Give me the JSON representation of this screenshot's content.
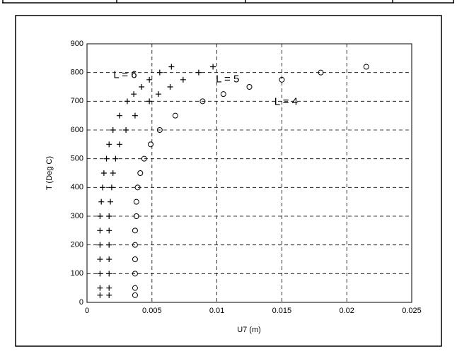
{
  "chart_data": {
    "type": "scatter",
    "xlabel": "U7 (m)",
    "ylabel": "T (Deg C)",
    "xlim": [
      0,
      0.025
    ],
    "xticks": [
      0,
      0.005,
      0.01,
      0.015,
      0.02,
      0.025
    ],
    "ylim": [
      0,
      900
    ],
    "yticks": [
      0,
      100,
      200,
      300,
      400,
      500,
      600,
      700,
      800,
      900
    ],
    "grid": true,
    "series": [
      {
        "name": "L = 6",
        "color": "#000000",
        "marker": "plus",
        "x": [
          0.001,
          0.001,
          0.001,
          0.001,
          0.001,
          0.001,
          0.001,
          0.0011,
          0.0012,
          0.0013,
          0.0015,
          0.0017,
          0.002,
          0.0025,
          0.0031,
          0.0036,
          0.0042,
          0.0048,
          0.0056,
          0.0065
        ],
        "values": [
          25,
          50,
          100,
          150,
          200,
          250,
          300,
          350,
          400,
          450,
          500,
          550,
          600,
          650,
          700,
          725,
          750,
          775,
          800,
          820
        ]
      },
      {
        "name": "L = 5",
        "color": "#000000",
        "marker": "plus",
        "x": [
          0.0017,
          0.0017,
          0.0017,
          0.0017,
          0.0017,
          0.0017,
          0.0017,
          0.0018,
          0.0019,
          0.002,
          0.0022,
          0.0025,
          0.003,
          0.0037,
          0.0048,
          0.0055,
          0.0064,
          0.0074,
          0.0086,
          0.0097
        ],
        "values": [
          25,
          50,
          100,
          150,
          200,
          250,
          300,
          350,
          400,
          450,
          500,
          550,
          600,
          650,
          700,
          725,
          750,
          775,
          800,
          820
        ]
      },
      {
        "name": "L = 4",
        "color": "#000000",
        "marker": "circle",
        "x": [
          0.0037,
          0.0037,
          0.0037,
          0.0037,
          0.0037,
          0.0037,
          0.0038,
          0.0038,
          0.0039,
          0.0041,
          0.0044,
          0.0049,
          0.0056,
          0.0068,
          0.0089,
          0.0105,
          0.0125,
          0.015,
          0.018,
          0.0215
        ],
        "values": [
          25,
          50,
          100,
          150,
          200,
          250,
          300,
          350,
          400,
          450,
          500,
          550,
          600,
          650,
          700,
          725,
          750,
          775,
          800,
          820
        ]
      }
    ]
  }
}
